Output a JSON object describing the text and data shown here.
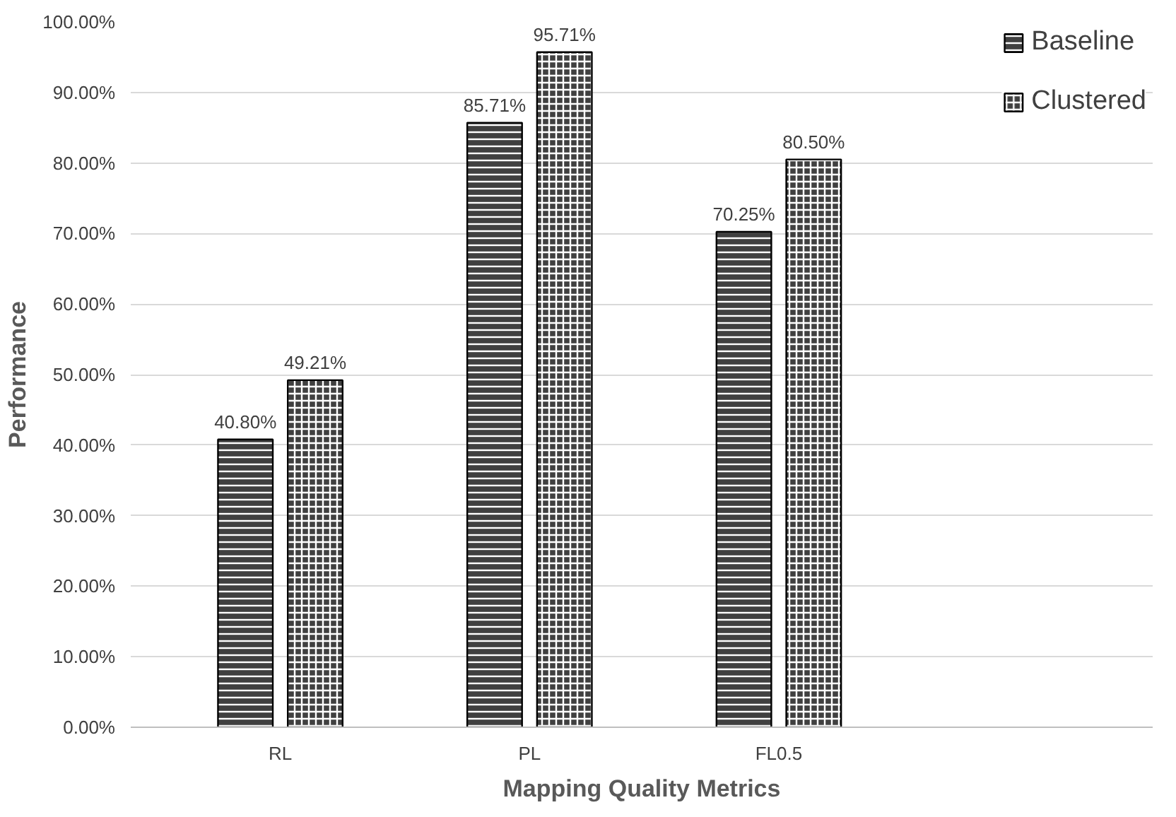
{
  "chart_data": {
    "type": "bar",
    "xlabel": "Mapping Quality Metrics",
    "ylabel": "Performance",
    "categories": [
      "RL",
      "PL",
      "FL0.5"
    ],
    "series": [
      {
        "name": "Baseline",
        "color": "#404040",
        "values": [
          40.8,
          85.71,
          70.25
        ],
        "value_labels": [
          "40.80%",
          "85.71%",
          "70.25%"
        ]
      },
      {
        "name": "Clustered",
        "color": "#404040",
        "values": [
          49.21,
          95.71,
          80.5
        ],
        "value_labels": [
          "49.21%",
          "95.71%",
          "80.50%"
        ]
      }
    ],
    "ylim": [
      0,
      100
    ],
    "yticks": [
      {
        "value": 0,
        "label": "0.00%"
      },
      {
        "value": 10,
        "label": "10.00%"
      },
      {
        "value": 20,
        "label": "20.00%"
      },
      {
        "value": 30,
        "label": "30.00%"
      },
      {
        "value": 40,
        "label": "40.00%"
      },
      {
        "value": 50,
        "label": "50.00%"
      },
      {
        "value": 60,
        "label": "60.00%"
      },
      {
        "value": 70,
        "label": "70.00%"
      },
      {
        "value": 80,
        "label": "80.00%"
      },
      {
        "value": 90,
        "label": "90.00%"
      },
      {
        "value": 100,
        "label": "100.00%"
      }
    ],
    "grid": "y",
    "legend": "right"
  }
}
